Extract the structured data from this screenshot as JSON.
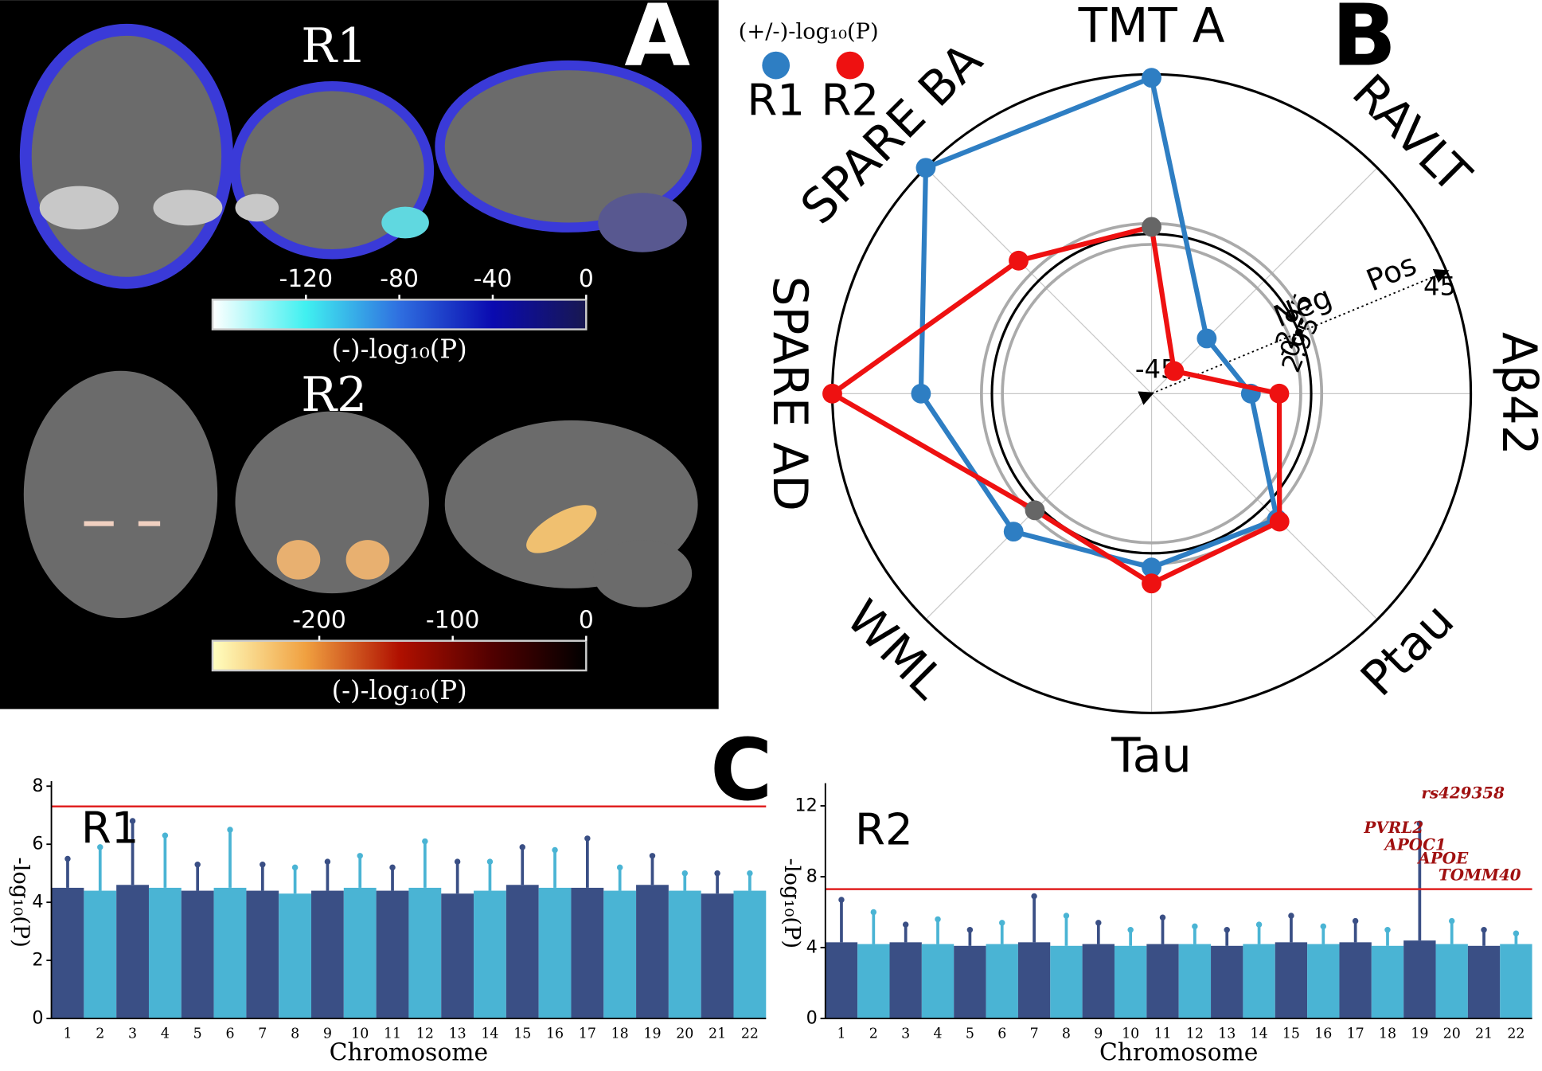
{
  "panel_labels": {
    "a": "A",
    "b": "B",
    "c": "C"
  },
  "chart_data": [
    {
      "type": "colorbar",
      "title": "R1",
      "xlabel": "(-)-log₁₀(P)",
      "xlim": [
        -160,
        0
      ],
      "xticks": [
        -120,
        -80,
        -40,
        0
      ],
      "colors": [
        "#ffffff",
        "#40f0f0",
        "#2f6fe0",
        "#0a0ab0",
        "#181850"
      ]
    },
    {
      "type": "colorbar",
      "title": "R2",
      "xlabel": "(-)-log₁₀(P)",
      "xlim": [
        -280,
        0
      ],
      "xticks": [
        -200,
        -100,
        0
      ],
      "colors": [
        "#ffffc0",
        "#f0a040",
        "#b01000",
        "#500000",
        "#000000"
      ]
    },
    {
      "type": "radar",
      "legend_title": "(+/-)-log₁₀(P)",
      "categories": [
        "TMT A",
        "RAVLT",
        "Aβ42",
        "Ptau",
        "Tau",
        "WML",
        "SPARE AD",
        "SPARE BA"
      ],
      "series": [
        {
          "name": "R1",
          "color": "#2e7ec3",
          "values": [
            44,
            -23,
            -17,
            5,
            4,
            10,
            20,
            45
          ]
        },
        {
          "name": "R2",
          "color": "#ee1111",
          "values": [
            2,
            -36,
            -9,
            6,
            8.5,
            1.5,
            45,
            8
          ]
        }
      ],
      "rlim": [
        -45,
        45
      ],
      "rticks": [
        -45,
        -2.95,
        0,
        2.95,
        45
      ],
      "significance_threshold": 2.95,
      "insignificant_color": "#666666",
      "annotations": [
        "Neg",
        "Pos"
      ],
      "grid": true
    },
    {
      "type": "manhattan",
      "title": "R1",
      "xlabel": "Chromosome",
      "ylabel": "-log₁₀(P)",
      "categories": [
        "1",
        "2",
        "3",
        "4",
        "5",
        "6",
        "7",
        "8",
        "9",
        "10",
        "11",
        "12",
        "13",
        "14",
        "15",
        "16",
        "17",
        "18",
        "19",
        "20",
        "21",
        "22"
      ],
      "values": [
        5.5,
        5.9,
        6.8,
        6.3,
        5.3,
        6.5,
        5.3,
        5.2,
        5.4,
        5.6,
        5.2,
        6.1,
        5.4,
        5.4,
        5.9,
        5.8,
        6.2,
        5.2,
        5.6,
        5.0,
        5.0,
        5.0
      ],
      "bulk": [
        4.5,
        4.4,
        4.6,
        4.5,
        4.4,
        4.5,
        4.4,
        4.3,
        4.4,
        4.5,
        4.4,
        4.5,
        4.3,
        4.4,
        4.6,
        4.5,
        4.5,
        4.4,
        4.6,
        4.4,
        4.3,
        4.4
      ],
      "colors": [
        "#3a4f85",
        "#4ab4d4"
      ],
      "threshold": 7.3,
      "threshold_color": "#e02020",
      "ylim": [
        0,
        8
      ],
      "yticks": [
        0,
        2,
        4,
        6,
        8
      ]
    },
    {
      "type": "manhattan",
      "title": "R2",
      "xlabel": "Chromosome",
      "ylabel": "-log₁₀(P)",
      "categories": [
        "1",
        "2",
        "3",
        "4",
        "5",
        "6",
        "7",
        "8",
        "9",
        "10",
        "11",
        "12",
        "13",
        "14",
        "15",
        "16",
        "17",
        "18",
        "19",
        "20",
        "21",
        "22"
      ],
      "values": [
        6.7,
        6.0,
        5.3,
        5.6,
        5.0,
        5.4,
        6.9,
        5.8,
        5.4,
        5.0,
        5.7,
        5.2,
        5.0,
        5.3,
        5.8,
        5.2,
        5.5,
        5.0,
        11.0,
        5.5,
        5.0,
        4.8
      ],
      "bulk": [
        4.3,
        4.2,
        4.3,
        4.2,
        4.1,
        4.2,
        4.3,
        4.1,
        4.2,
        4.1,
        4.2,
        4.2,
        4.1,
        4.2,
        4.3,
        4.2,
        4.3,
        4.1,
        4.4,
        4.2,
        4.1,
        4.2
      ],
      "colors": [
        "#3a4f85",
        "#4ab4d4"
      ],
      "threshold": 7.3,
      "threshold_color": "#e02020",
      "ylim": [
        0,
        13
      ],
      "yticks": [
        0,
        4,
        8,
        12
      ],
      "annotations": [
        "rs429358",
        "PVRL2",
        "APOC1",
        "APOE",
        "TOMM40"
      ],
      "annotation_color": "#a01010"
    }
  ]
}
